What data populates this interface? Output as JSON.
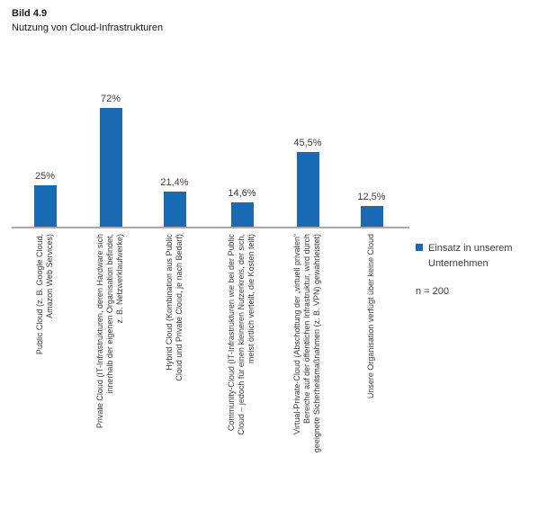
{
  "header": {
    "figure_number": "Bild 4.9",
    "title": "Nutzung von Cloud-Infrastrukturen"
  },
  "legend": {
    "series_label": [
      "Einsatz in unserem",
      "Unternehmen"
    ],
    "sample_size": "n = 200"
  },
  "colors": {
    "bar_blue": "#1a6ab3",
    "axis_gray": "#a9a9a9",
    "text_gray": "#3d3d3d"
  },
  "chart_data": {
    "type": "bar",
    "figure_number": "Bild 4.9",
    "title": "Nutzung von Cloud-Infrastrukturen",
    "categories": [
      "Public Cloud (z. B. Google Cloud, Amazon Web Services)",
      "Private Cloud (IT-Infrastrukturen, deren Hardware sich innerhalb der eigenen Organisation befindet, z. B. Netzwerklaufwerke)",
      "Hybrid Cloud (Kombination aus Public Cloud und Private Cloud, je nach Bedarf)",
      "Community-Cloud (IT-Infrastrukturen wie bei der Public Cloud – jedoch für einen kleineren Nutzerkreis, der sich, meist örtlich verteilt, die Kosten teilt)",
      "Virtual-Private-Cloud (Abschottung der „virtuell privaten“ Bereiche auf der öffentlichen Infrastruktur, wird durch geeignete Sicherheitsmaßnahmen (z. B. VPN) gewährleistet)",
      "Unsere Organisation verfügt über keine Cloud"
    ],
    "category_lines": [
      [
        "Public Cloud (z. B. Google Cloud,",
        "Amazon Web Services)"
      ],
      [
        "Private Cloud (IT-Infrastrukturen, deren Hardware sich",
        "innerhalb der eigenen Organisation befindet,",
        "z. B. Netzwerklaufwerke)"
      ],
      [
        "Hybrid Cloud (Kombination aus Public",
        "Cloud und Private Cloud, je nach Bedarf)"
      ],
      [
        "Community-Cloud (IT-Infrastrukturen wie bei der Public",
        "Cloud – jedoch für einen kleineren Nutzerkreis, der sich,",
        "meist örtlich verteilt, die Kosten teilt)"
      ],
      [
        "Virtual-Private-Cloud (Abschottung der „virtuell privaten“",
        "Bereiche auf der öffentlichen Infrastruktur, wird durch",
        "geeignete Sicherheitsmaßnahmen (z. B. VPN) gewährleistet)"
      ],
      [
        "Unsere Organisation verfügt über keine Cloud"
      ]
    ],
    "series": [
      {
        "name": "Einsatz in unserem Unternehmen",
        "values": [
          25,
          72,
          21.4,
          14.6,
          45.5,
          12.5
        ]
      }
    ],
    "value_labels": [
      "25%",
      "72%",
      "21,4%",
      "14,6%",
      "45,5%",
      "12,5%"
    ],
    "xlabel": "",
    "ylabel": "",
    "ylim": [
      0,
      80
    ],
    "grid": false,
    "legend_position": "right",
    "n": 200
  }
}
